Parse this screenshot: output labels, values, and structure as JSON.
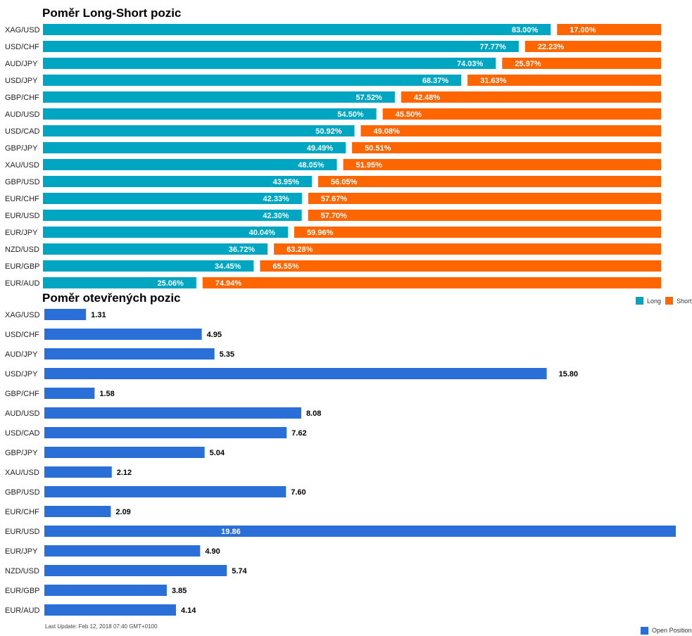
{
  "chart_data": [
    {
      "type": "bar",
      "orientation": "horizontal",
      "stacked": true,
      "title": "Poměr Long-Short pozic",
      "categories": [
        "XAG/USD",
        "USD/CHF",
        "AUD/JPY",
        "USD/JPY",
        "GBP/CHF",
        "AUD/USD",
        "USD/CAD",
        "GBP/JPY",
        "XAU/USD",
        "GBP/USD",
        "EUR/CHF",
        "EUR/USD",
        "EUR/JPY",
        "NZD/USD",
        "EUR/GBP",
        "EUR/AUD"
      ],
      "series": [
        {
          "name": "Long",
          "color": "#00A6C1",
          "values": [
            83.0,
            77.77,
            74.03,
            68.37,
            57.52,
            54.5,
            50.92,
            49.49,
            48.05,
            43.95,
            42.33,
            42.3,
            40.04,
            36.72,
            34.45,
            25.06
          ],
          "labels": [
            "83.00%",
            "77.77%",
            "74.03%",
            "68.37%",
            "57.52%",
            "54.50%",
            "50.92%",
            "49.49%",
            "48.05%",
            "43.95%",
            "42.33%",
            "42.30%",
            "40.04%",
            "36.72%",
            "34.45%",
            "25.06%"
          ]
        },
        {
          "name": "Short",
          "color": "#FF6600",
          "values": [
            17.0,
            22.23,
            25.97,
            31.63,
            42.48,
            45.5,
            49.08,
            50.51,
            51.95,
            56.05,
            57.67,
            57.7,
            59.96,
            63.28,
            65.55,
            74.94
          ],
          "labels": [
            "17.00%",
            "22.23%",
            "25.97%",
            "31.63%",
            "42.48%",
            "45.50%",
            "49.08%",
            "50.51%",
            "51.95%",
            "56.05%",
            "57.67%",
            "57.70%",
            "59.96%",
            "63.28%",
            "65.55%",
            "74.94%"
          ]
        }
      ],
      "xlim": [
        0,
        100
      ],
      "legend": "bottom-right"
    },
    {
      "type": "bar",
      "orientation": "horizontal",
      "title": "Poměr otevřených pozic",
      "categories": [
        "XAG/USD",
        "USD/CHF",
        "AUD/JPY",
        "USD/JPY",
        "GBP/CHF",
        "AUD/USD",
        "USD/CAD",
        "GBP/JPY",
        "XAU/USD",
        "GBP/USD",
        "EUR/CHF",
        "EUR/USD",
        "EUR/JPY",
        "NZD/USD",
        "EUR/GBP",
        "EUR/AUD"
      ],
      "series": [
        {
          "name": "Open Positions",
          "color": "#2A6FD8",
          "values": [
            1.31,
            4.95,
            5.35,
            15.8,
            1.58,
            8.08,
            7.62,
            5.04,
            2.12,
            7.6,
            2.09,
            19.86,
            4.9,
            5.74,
            3.85,
            4.14
          ],
          "labels": [
            "1.31",
            "4.95",
            "5.35",
            "15.80",
            "1.58",
            "8.08",
            "7.62",
            "5.04",
            "2.12",
            "7.60",
            "2.09",
            "19.86",
            "4.90",
            "5.74",
            "3.85",
            "4.14"
          ]
        }
      ],
      "xlim": [
        0,
        19.86
      ],
      "legend": "bottom-right"
    }
  ],
  "footer": "Last Update: Feb 12, 2018 07:40 GMT+0100"
}
